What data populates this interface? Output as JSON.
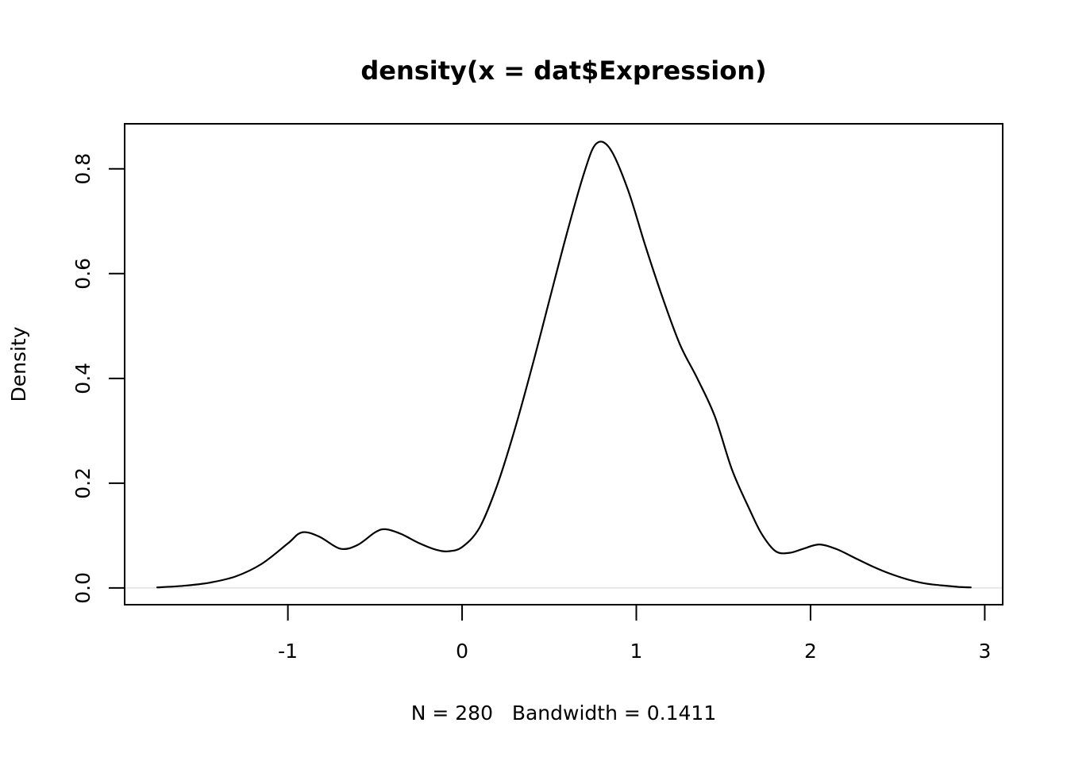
{
  "title": "density(x = dat$Expression)",
  "caption": "N = 280   Bandwidth = 0.1411",
  "ylabel": "Density",
  "colors": {
    "curve": "#000000",
    "box": "#000000",
    "zero_line": "#e0e0e0",
    "text": "#000000",
    "background": "#ffffff"
  },
  "chart_data": {
    "type": "line",
    "title": "density(x = dat$Expression)",
    "xlabel": "N = 280   Bandwidth = 0.1411",
    "ylabel": "Density",
    "n": 280,
    "bandwidth": 0.1411,
    "xlim": [
      -1.937,
      3.103
    ],
    "ylim": [
      -0.032,
      0.886
    ],
    "x_ticks": [
      -1,
      0,
      1,
      2,
      3
    ],
    "x_tick_labels": [
      "-1",
      "0",
      "1",
      "2",
      "3"
    ],
    "y_ticks": [
      0.0,
      0.2,
      0.4,
      0.6,
      0.8
    ],
    "y_tick_labels": [
      "0.0",
      "0.2",
      "0.4",
      "0.6",
      "0.8"
    ],
    "grid": false,
    "legend": false,
    "zero_line": true,
    "box": true,
    "series": [
      {
        "name": "density",
        "x": [
          -1.75,
          -1.6,
          -1.45,
          -1.3,
          -1.15,
          -1.0,
          -0.92,
          -0.82,
          -0.7,
          -0.6,
          -0.5,
          -0.44,
          -0.35,
          -0.25,
          -0.15,
          -0.08,
          0.0,
          0.1,
          0.2,
          0.3,
          0.4,
          0.5,
          0.6,
          0.7,
          0.77,
          0.85,
          0.95,
          1.05,
          1.15,
          1.25,
          1.35,
          1.45,
          1.55,
          1.65,
          1.72,
          1.8,
          1.88,
          1.96,
          2.05,
          2.15,
          2.25,
          2.35,
          2.45,
          2.55,
          2.65,
          2.75,
          2.85,
          2.92
        ],
        "y": [
          0.001,
          0.004,
          0.01,
          0.022,
          0.046,
          0.085,
          0.106,
          0.098,
          0.075,
          0.082,
          0.106,
          0.112,
          0.103,
          0.086,
          0.073,
          0.07,
          0.078,
          0.115,
          0.195,
          0.3,
          0.42,
          0.548,
          0.675,
          0.792,
          0.848,
          0.838,
          0.762,
          0.655,
          0.555,
          0.465,
          0.4,
          0.328,
          0.225,
          0.15,
          0.103,
          0.07,
          0.067,
          0.075,
          0.083,
          0.074,
          0.058,
          0.042,
          0.028,
          0.017,
          0.009,
          0.005,
          0.002,
          0.001
        ]
      }
    ]
  }
}
